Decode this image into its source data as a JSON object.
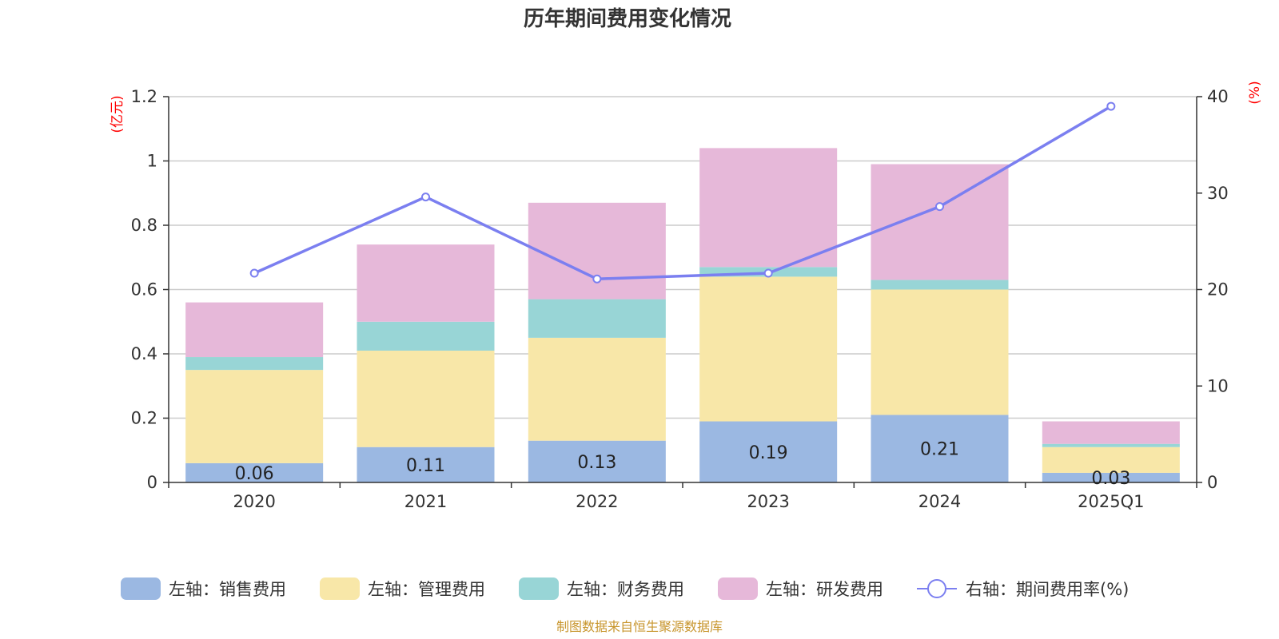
{
  "chart_data": {
    "type": "bar",
    "stacked": true,
    "title": "历年期间费用变化情况",
    "categories": [
      "2020",
      "2021",
      "2022",
      "2023",
      "2024",
      "2025Q1"
    ],
    "series": [
      {
        "name": "左轴：销售费用",
        "axis": "left",
        "color": "#9bb8e2",
        "values": [
          0.06,
          0.11,
          0.13,
          0.19,
          0.21,
          0.03
        ],
        "labels": [
          "0.06",
          "0.11",
          "0.13",
          "0.19",
          "0.21",
          "0.03"
        ]
      },
      {
        "name": "左轴：管理费用",
        "axis": "left",
        "color": "#f8e7a8",
        "values": [
          0.29,
          0.3,
          0.32,
          0.45,
          0.39,
          0.08
        ]
      },
      {
        "name": "左轴：财务费用",
        "axis": "left",
        "color": "#98d5d6",
        "values": [
          0.04,
          0.09,
          0.12,
          0.03,
          0.03,
          0.01
        ]
      },
      {
        "name": "左轴：研发费用",
        "axis": "left",
        "color": "#e6b8d9",
        "values": [
          0.17,
          0.24,
          0.3,
          0.37,
          0.36,
          0.07
        ]
      },
      {
        "name": "右轴：期间费用率(%)",
        "axis": "right",
        "type": "line",
        "color": "#7b7ff0",
        "values": [
          21.7,
          29.6,
          21.1,
          21.7,
          28.6,
          39.0
        ]
      }
    ],
    "y_left": {
      "unit": "(亿元)",
      "ylim": [
        0,
        1.2
      ],
      "ticks": [
        "0",
        "0.2",
        "0.4",
        "0.6",
        "0.8",
        "1",
        "1.2"
      ]
    },
    "y_right": {
      "unit": "(%)",
      "ylim": [
        0,
        40
      ],
      "ticks": [
        "0",
        "10",
        "20",
        "30",
        "40"
      ]
    },
    "grid": true,
    "legend_position": "bottom",
    "source": "制图数据来自恒生聚源数据库"
  }
}
